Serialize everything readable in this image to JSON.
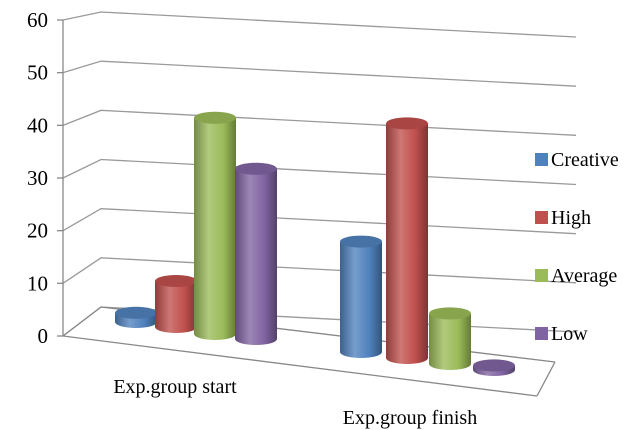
{
  "chart_data": {
    "type": "bar",
    "style": "3d-cylinder",
    "categories": [
      "Exp.group start",
      "Exp.group finish"
    ],
    "series": [
      {
        "name": "Creative",
        "values": [
          2,
          24
        ],
        "color": "#4f81bd"
      },
      {
        "name": "High",
        "values": [
          10,
          51
        ],
        "color": "#c0504d"
      },
      {
        "name": "Average",
        "values": [
          47,
          11
        ],
        "color": "#9bbb59"
      },
      {
        "name": "Low",
        "values": [
          37,
          1
        ],
        "color": "#8064a2"
      }
    ],
    "y_ticks": [
      "0",
      "10",
      "20",
      "30",
      "40",
      "50",
      "60"
    ],
    "ylim": [
      0,
      60
    ],
    "grid": true,
    "legend_position": "right"
  }
}
